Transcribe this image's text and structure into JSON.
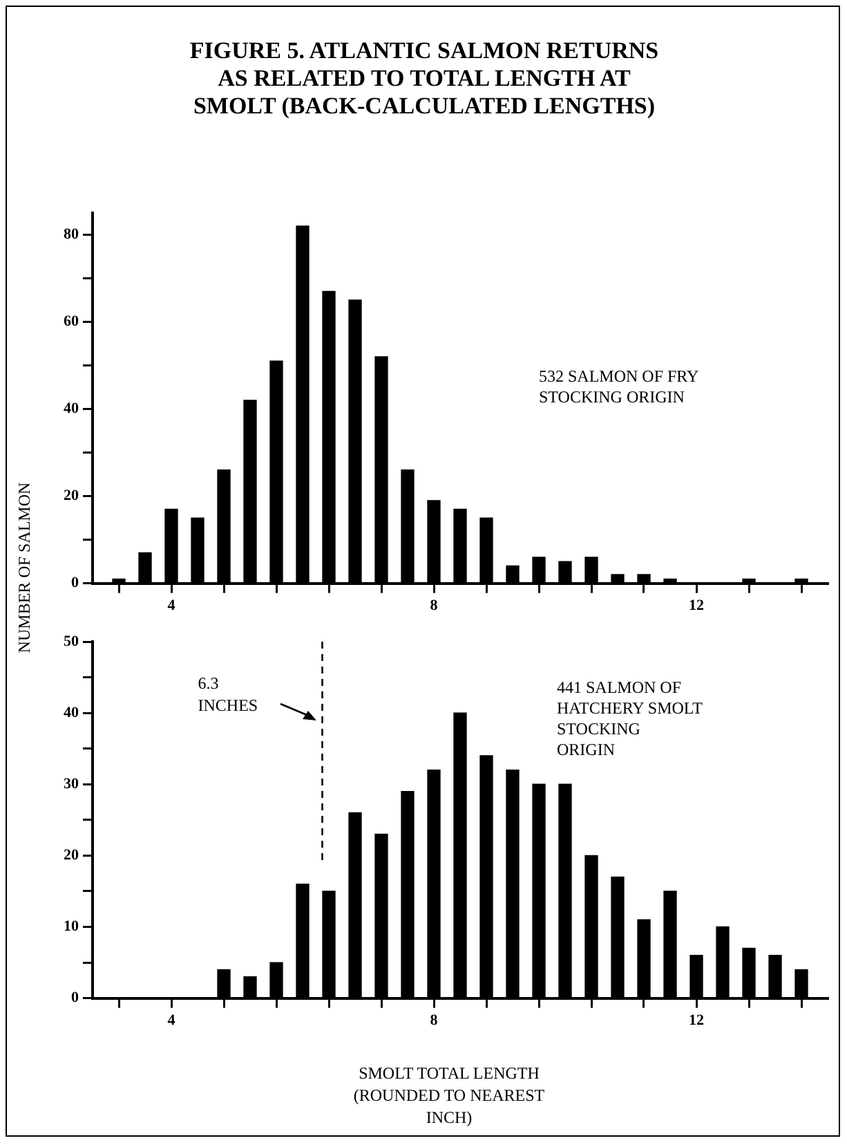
{
  "chart_data": [
    {
      "type": "bar",
      "title": "FIGURE 5. ATLANTIC SALMON RETURNS\nAS RELATED TO TOTAL LENGTH AT\nSMOLT (BACK-CALCULATED LENGTHS)",
      "ylabel": "NUMBER OF SALMON",
      "x": [
        3.2,
        3.6,
        4.0,
        4.4,
        4.8,
        5.2,
        5.6,
        6.0,
        6.4,
        6.8,
        7.2,
        7.6,
        8.0,
        8.4,
        8.8,
        9.2,
        9.6,
        10.0,
        10.4,
        10.8,
        11.2,
        11.6,
        12.0,
        12.4,
        12.8,
        13.2,
        13.6
      ],
      "values": [
        1,
        7,
        17,
        15,
        26,
        42,
        51,
        82,
        67,
        65,
        52,
        26,
        19,
        17,
        15,
        4,
        6,
        5,
        6,
        2,
        2,
        1,
        0,
        0,
        1,
        0,
        1
      ],
      "color": "#000000",
      "xlim": [
        2.8,
        14.0
      ],
      "xticks": [
        {
          "value": 3.2,
          "label": null
        },
        4,
        {
          "value": 4.8,
          "label": null
        },
        {
          "value": 5.6,
          "label": null
        },
        {
          "value": 6.4,
          "label": null
        },
        {
          "value": 7.2,
          "label": null
        },
        8,
        {
          "value": 8.8,
          "label": null
        },
        {
          "value": 9.6,
          "label": null
        },
        {
          "value": 10.4,
          "label": null
        },
        {
          "value": 11.2,
          "label": null
        },
        12,
        {
          "value": 12.8,
          "label": null
        },
        {
          "value": 13.6,
          "label": null
        }
      ],
      "ylim": [
        0,
        85
      ],
      "yticks": [
        0,
        {
          "value": 10,
          "label": null
        },
        20,
        {
          "value": 30,
          "label": null
        },
        40,
        {
          "value": 50,
          "label": null
        },
        60,
        {
          "value": 70,
          "label": null
        },
        80
      ],
      "annotations": [
        "532 SALMON OF FRY\nSTOCKING ORIGIN"
      ],
      "grid": false,
      "legend": false
    },
    {
      "type": "bar",
      "xlabel": "SMOLT TOTAL LENGTH\n(ROUNDED TO NEAREST\nINCH)",
      "x": [
        4.8,
        5.2,
        5.6,
        6.0,
        6.4,
        6.8,
        7.2,
        7.6,
        8.0,
        8.4,
        8.8,
        9.2,
        9.6,
        10.0,
        10.4,
        10.8,
        11.2,
        11.6,
        12.0,
        12.4,
        12.8,
        13.2,
        13.6
      ],
      "values": [
        4,
        3,
        5,
        16,
        15,
        26,
        23,
        29,
        32,
        40,
        34,
        32,
        30,
        30,
        20,
        17,
        11,
        15,
        6,
        10,
        7,
        6,
        4
      ],
      "color": "#000000",
      "xlim": [
        2.8,
        14.0
      ],
      "xticks": [
        {
          "value": 3.2,
          "label": null
        },
        4,
        {
          "value": 4.8,
          "label": null
        },
        {
          "value": 5.6,
          "label": null
        },
        {
          "value": 6.4,
          "label": null
        },
        {
          "value": 7.2,
          "label": null
        },
        8,
        {
          "value": 8.8,
          "label": null
        },
        {
          "value": 9.6,
          "label": null
        },
        {
          "value": 10.4,
          "label": null
        },
        {
          "value": 11.2,
          "label": null
        },
        12,
        {
          "value": 12.8,
          "label": null
        },
        {
          "value": 13.6,
          "label": null
        }
      ],
      "ylim": [
        0,
        50
      ],
      "yticks": [
        0,
        {
          "value": 5,
          "label": null
        },
        10,
        {
          "value": 15,
          "label": null
        },
        20,
        {
          "value": 25,
          "label": null
        },
        30,
        {
          "value": 35,
          "label": null
        },
        40,
        {
          "value": 45,
          "label": null
        },
        50
      ],
      "ref_lines": [
        {
          "axis": "x",
          "value": 6.3,
          "label": "6.3\nINCHES",
          "line_style": "dashed"
        }
      ],
      "annotations": [
        "441 SALMON OF\nHATCHERY SMOLT\nSTOCKING\nORIGIN"
      ],
      "grid": false,
      "legend": false
    }
  ]
}
